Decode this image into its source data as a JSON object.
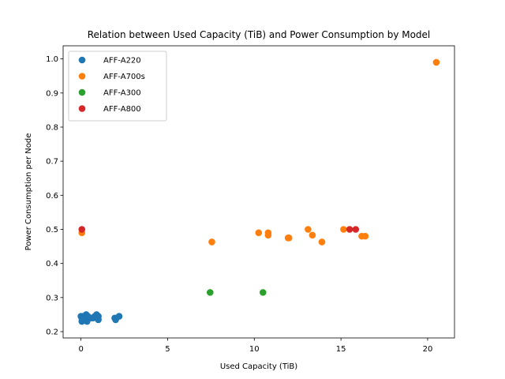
{
  "chart_data": {
    "type": "scatter",
    "title": "Relation between Used Capacity (TiB) and Power Consumption by Model",
    "xlabel": "Used Capacity (TiB)",
    "ylabel": "Power Consumption per Node",
    "xlim": [
      -1.03,
      21.55
    ],
    "ylim": [
      0.1815,
      1.0385
    ],
    "xticks": [
      0,
      5,
      10,
      15,
      20
    ],
    "yticks": [
      0.2,
      0.3,
      0.4,
      0.5,
      0.6,
      0.7,
      0.8,
      0.9,
      1.0
    ],
    "ytick_labels": [
      "0.2",
      "0.3",
      "0.4",
      "0.5",
      "0.6",
      "0.7",
      "0.8",
      "0.9",
      "1.0"
    ],
    "grid": false,
    "legend_position": "top-left",
    "series": [
      {
        "name": "AFF-A220",
        "color": "#1f77b4",
        "points": [
          [
            0.0,
            0.245
          ],
          [
            0.05,
            0.24
          ],
          [
            0.05,
            0.23
          ],
          [
            0.1,
            0.235
          ],
          [
            0.15,
            0.245
          ],
          [
            0.2,
            0.24
          ],
          [
            0.25,
            0.235
          ],
          [
            0.3,
            0.25
          ],
          [
            0.35,
            0.23
          ],
          [
            0.4,
            0.245
          ],
          [
            0.45,
            0.24
          ],
          [
            0.6,
            0.24
          ],
          [
            0.7,
            0.24
          ],
          [
            0.8,
            0.245
          ],
          [
            0.9,
            0.25
          ],
          [
            1.0,
            0.245
          ],
          [
            1.0,
            0.235
          ],
          [
            1.95,
            0.24
          ],
          [
            2.0,
            0.235
          ],
          [
            2.2,
            0.245
          ]
        ]
      },
      {
        "name": "AFF-A700s",
        "color": "#ff7f0e",
        "points": [
          [
            0.05,
            0.49
          ],
          [
            7.55,
            0.463
          ],
          [
            10.25,
            0.49
          ],
          [
            10.8,
            0.49
          ],
          [
            10.8,
            0.483
          ],
          [
            11.95,
            0.475
          ],
          [
            12.0,
            0.475
          ],
          [
            13.1,
            0.5
          ],
          [
            13.35,
            0.483
          ],
          [
            13.9,
            0.463
          ],
          [
            15.15,
            0.5
          ],
          [
            16.2,
            0.48
          ],
          [
            16.4,
            0.48
          ],
          [
            20.5,
            0.99
          ]
        ]
      },
      {
        "name": "AFF-A300",
        "color": "#2ca02c",
        "points": [
          [
            7.45,
            0.315
          ],
          [
            10.5,
            0.315
          ]
        ]
      },
      {
        "name": "AFF-A800",
        "color": "#d62728",
        "points": [
          [
            0.05,
            0.5
          ],
          [
            15.5,
            0.5
          ],
          [
            15.85,
            0.5
          ]
        ]
      }
    ]
  }
}
